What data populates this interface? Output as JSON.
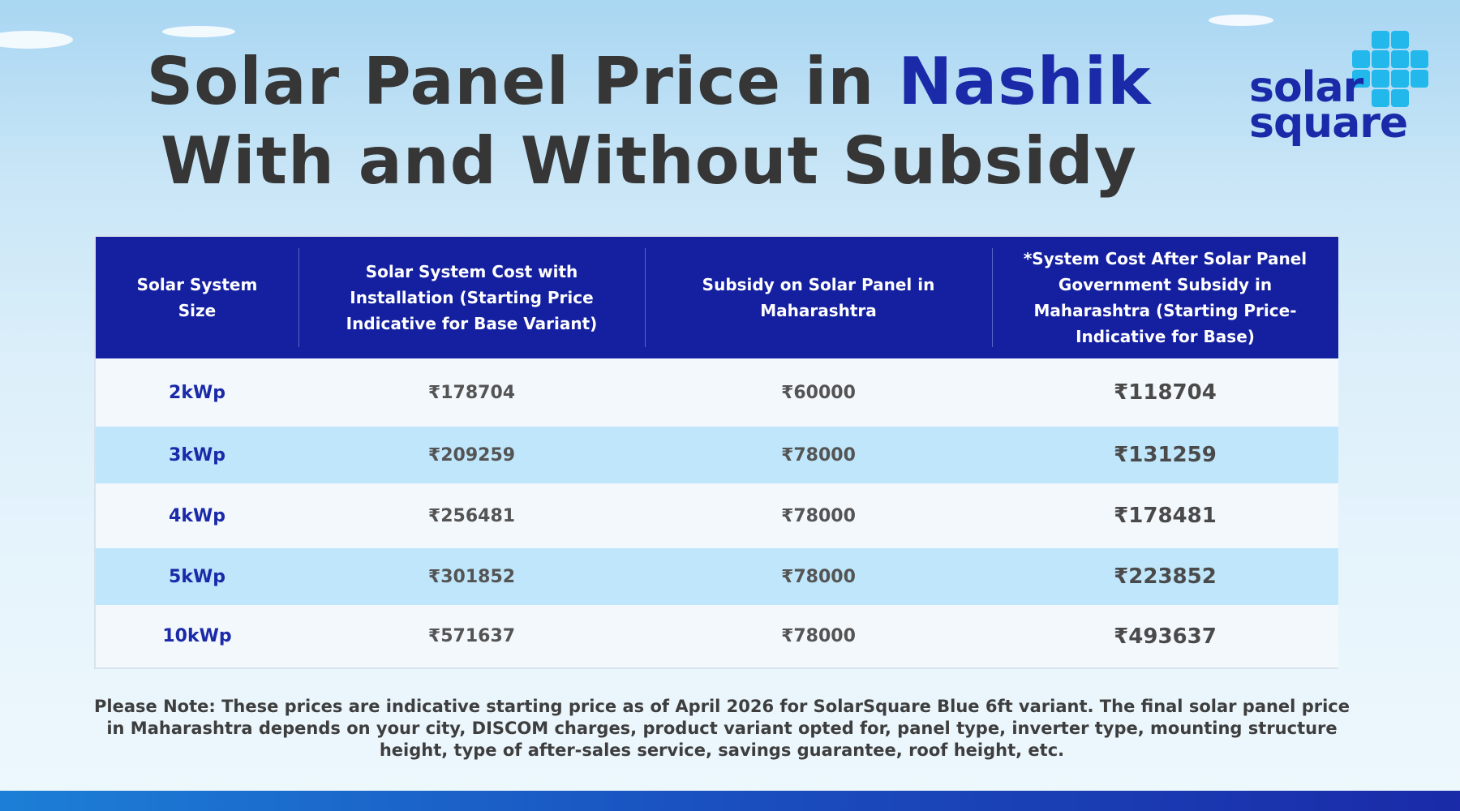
{
  "title": {
    "line1_prefix": "Solar Panel Price in ",
    "line1_accent": "Nashik",
    "line2": "With and Without Subsidy"
  },
  "logo": {
    "line1": "solar",
    "line2": "square"
  },
  "colors": {
    "accent": "#1a2aa8",
    "header_bg": "#1420a0",
    "row_highlight": "#bfe6fa",
    "logo_grid": "#22b8ec"
  },
  "table": {
    "headers": [
      "Solar System Size",
      "Solar System Cost with Installation (Starting Price Indicative for Base Variant)",
      "Subsidy on Solar Panel in Maharashtra",
      "*System Cost After Solar Panel Government Subsidy in Maharashtra (Starting Price- Indicative for Base)"
    ],
    "rows": [
      {
        "size": "2kWp",
        "cost": "₹178704",
        "subsidy": "₹60000",
        "final": "₹118704"
      },
      {
        "size": "3kWp",
        "cost": "₹209259",
        "subsidy": "₹78000",
        "final": "₹131259"
      },
      {
        "size": "4kWp",
        "cost": "₹256481",
        "subsidy": "₹78000",
        "final": "₹178481"
      },
      {
        "size": "5kWp",
        "cost": "₹301852",
        "subsidy": "₹78000",
        "final": "₹223852"
      },
      {
        "size": "10kWp",
        "cost": "₹571637",
        "subsidy": "₹78000",
        "final": "₹493637"
      }
    ]
  },
  "note": "Please Note: These prices are indicative starting price as of April 2026 for SolarSquare Blue 6ft variant. The final solar panel price in Maharashtra depends on your city, DISCOM charges, product variant opted for, panel type, inverter type, mounting structure height, type of after-sales service, savings guarantee, roof height, etc."
}
